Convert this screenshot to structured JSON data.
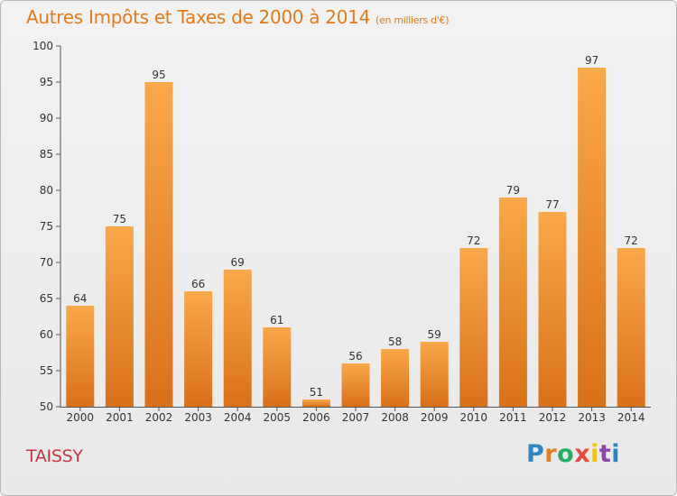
{
  "header": {
    "title": "Autres Impôts et Taxes de 2000 à 2014",
    "unit": "(en milliers d'€)"
  },
  "footer": {
    "commune": "TAISSY",
    "logo": {
      "text": "Proxiti",
      "colors": [
        "#2e86c1",
        "#e67e22",
        "#27ae60",
        "#e74c3c",
        "#f1c40f",
        "#8e44ad",
        "#2e86c1"
      ]
    }
  },
  "colors": {
    "title": "#e57a1a",
    "commune": "#cc3344",
    "bar_top": "#f9a84a",
    "bar_bottom": "#d9701a"
  },
  "chart_data": {
    "type": "bar",
    "title": "Autres Impôts et Taxes de 2000 à 2014",
    "xlabel": "",
    "ylabel": "",
    "categories": [
      "2000",
      "2001",
      "2002",
      "2003",
      "2004",
      "2005",
      "2006",
      "2007",
      "2008",
      "2009",
      "2010",
      "2011",
      "2012",
      "2013",
      "2014"
    ],
    "values": [
      64,
      75,
      95,
      66,
      69,
      61,
      51,
      56,
      58,
      59,
      72,
      79,
      77,
      97,
      72
    ],
    "ylim": [
      50,
      100
    ],
    "yticks": [
      50,
      55,
      60,
      65,
      70,
      75,
      80,
      85,
      90,
      95,
      100
    ],
    "grid": false
  }
}
